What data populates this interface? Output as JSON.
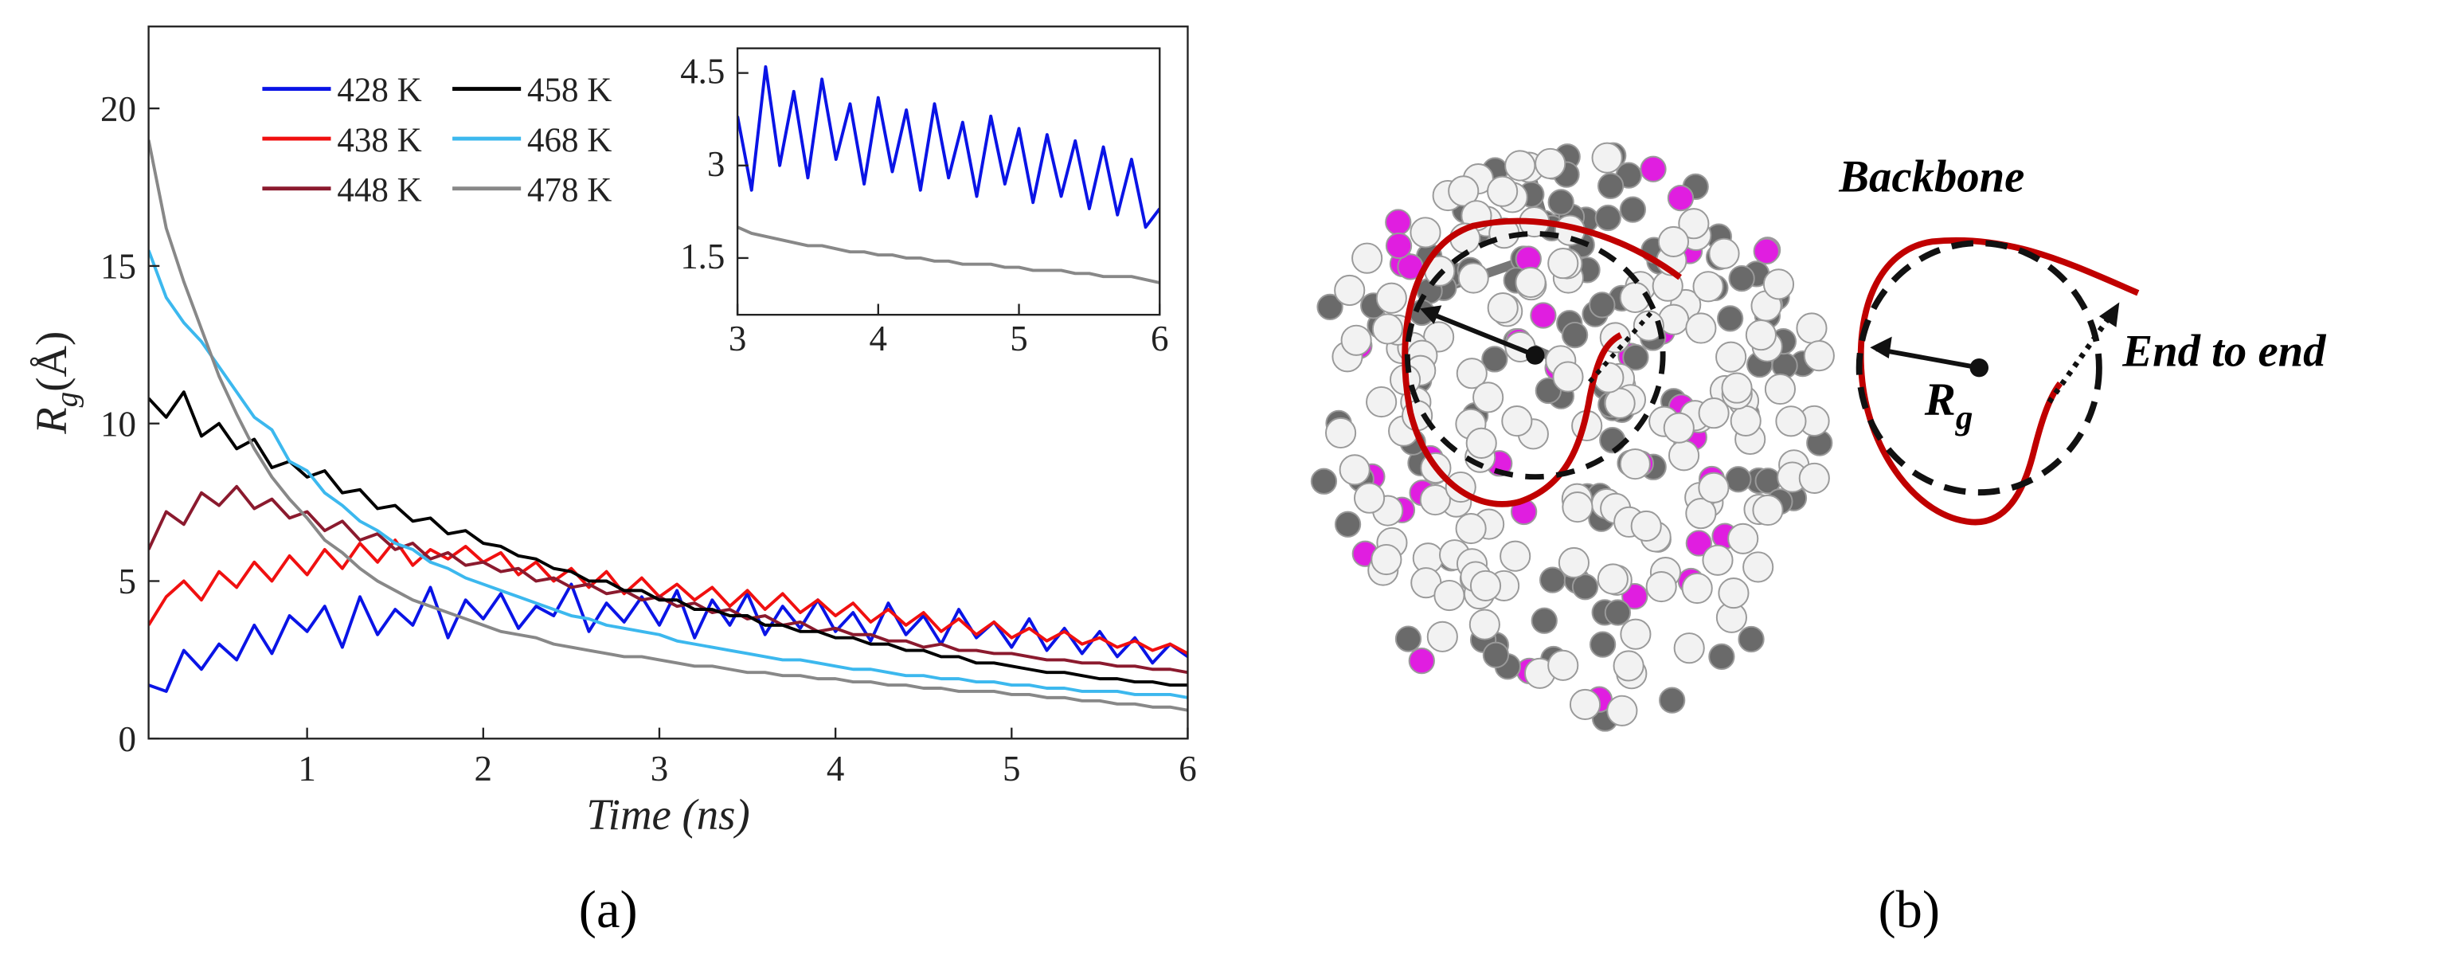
{
  "chart_data": [
    {
      "type": "line",
      "xlabel": "Time (ns)",
      "ylabel": [
        "R",
        "g",
        "(Å)"
      ],
      "x": [
        0.1,
        0.2,
        0.3,
        0.4,
        0.5,
        0.6,
        0.7,
        0.8,
        0.9,
        1.0,
        1.1,
        1.2,
        1.3,
        1.4,
        1.5,
        1.6,
        1.7,
        1.8,
        1.9,
        2.0,
        2.1,
        2.2,
        2.3,
        2.4,
        2.5,
        2.6,
        2.7,
        2.8,
        2.9,
        3.0,
        3.1,
        3.2,
        3.3,
        3.4,
        3.5,
        3.6,
        3.7,
        3.8,
        3.9,
        4.0,
        4.1,
        4.2,
        4.3,
        4.4,
        4.5,
        4.6,
        4.7,
        4.8,
        4.9,
        5.0,
        5.1,
        5.2,
        5.3,
        5.4,
        5.5,
        5.6,
        5.7,
        5.8,
        5.9,
        6.0
      ],
      "series": [
        {
          "name": "428 K",
          "color": "#0a14e6",
          "values": [
            1.7,
            1.5,
            2.8,
            2.2,
            3.0,
            2.5,
            3.6,
            2.7,
            3.9,
            3.4,
            4.2,
            2.9,
            4.5,
            3.3,
            4.1,
            3.6,
            4.8,
            3.2,
            4.4,
            3.8,
            4.6,
            3.5,
            4.2,
            3.9,
            4.9,
            3.4,
            4.3,
            3.7,
            4.5,
            3.6,
            4.7,
            3.2,
            4.4,
            3.6,
            4.6,
            3.3,
            4.2,
            3.5,
            4.4,
            3.4,
            4.0,
            3.1,
            4.3,
            3.3,
            3.9,
            3.0,
            4.1,
            3.2,
            3.7,
            2.9,
            3.8,
            2.8,
            3.5,
            2.7,
            3.4,
            2.6,
            3.2,
            2.4,
            3.0,
            2.6
          ]
        },
        {
          "name": "438 K",
          "color": "#f01010",
          "values": [
            3.6,
            4.5,
            5.0,
            4.4,
            5.3,
            4.8,
            5.6,
            5.0,
            5.8,
            5.2,
            6.0,
            5.4,
            6.2,
            5.6,
            6.3,
            5.5,
            6.0,
            5.7,
            6.1,
            5.6,
            5.9,
            5.2,
            5.6,
            5.0,
            5.4,
            4.8,
            5.3,
            4.6,
            5.1,
            4.5,
            4.9,
            4.4,
            4.8,
            4.2,
            4.7,
            4.1,
            4.6,
            4.0,
            4.4,
            3.9,
            4.3,
            3.7,
            4.1,
            3.6,
            4.0,
            3.4,
            3.8,
            3.3,
            3.7,
            3.2,
            3.5,
            3.1,
            3.4,
            3.0,
            3.2,
            2.9,
            3.1,
            2.8,
            3.0,
            2.7
          ]
        },
        {
          "name": "448 K",
          "color": "#8b1a2e",
          "values": [
            6.0,
            7.2,
            6.8,
            7.8,
            7.4,
            8.0,
            7.3,
            7.6,
            7.0,
            7.2,
            6.6,
            6.9,
            6.3,
            6.5,
            6.0,
            6.2,
            5.7,
            5.9,
            5.5,
            5.6,
            5.3,
            5.4,
            5.0,
            5.1,
            4.8,
            4.9,
            4.6,
            4.7,
            4.4,
            4.5,
            4.2,
            4.3,
            4.0,
            4.1,
            3.8,
            3.9,
            3.6,
            3.7,
            3.4,
            3.5,
            3.3,
            3.3,
            3.1,
            3.1,
            2.9,
            3.0,
            2.8,
            2.8,
            2.7,
            2.7,
            2.6,
            2.5,
            2.5,
            2.4,
            2.4,
            2.3,
            2.3,
            2.2,
            2.2,
            2.1
          ]
        },
        {
          "name": "458 K",
          "color": "#000000",
          "values": [
            10.8,
            10.2,
            11.0,
            9.6,
            10.0,
            9.2,
            9.5,
            8.6,
            8.8,
            8.3,
            8.5,
            7.8,
            7.9,
            7.3,
            7.4,
            6.9,
            7.0,
            6.5,
            6.6,
            6.2,
            6.1,
            5.8,
            5.7,
            5.4,
            5.3,
            5.0,
            5.0,
            4.7,
            4.7,
            4.4,
            4.4,
            4.1,
            4.1,
            3.9,
            3.9,
            3.6,
            3.6,
            3.4,
            3.4,
            3.2,
            3.2,
            3.0,
            3.0,
            2.8,
            2.8,
            2.6,
            2.6,
            2.4,
            2.4,
            2.3,
            2.2,
            2.1,
            2.1,
            2.0,
            1.9,
            1.9,
            1.8,
            1.8,
            1.7,
            1.7
          ]
        },
        {
          "name": "468 K",
          "color": "#3cb8ee",
          "values": [
            15.5,
            14.0,
            13.2,
            12.6,
            11.8,
            11.0,
            10.2,
            9.8,
            8.8,
            8.5,
            7.8,
            7.4,
            6.9,
            6.6,
            6.2,
            6.0,
            5.6,
            5.4,
            5.1,
            4.9,
            4.7,
            4.5,
            4.3,
            4.1,
            3.9,
            3.8,
            3.6,
            3.5,
            3.4,
            3.3,
            3.1,
            3.0,
            2.9,
            2.8,
            2.7,
            2.6,
            2.5,
            2.5,
            2.4,
            2.3,
            2.2,
            2.2,
            2.1,
            2.0,
            2.0,
            1.9,
            1.9,
            1.8,
            1.8,
            1.7,
            1.7,
            1.6,
            1.6,
            1.5,
            1.5,
            1.5,
            1.4,
            1.4,
            1.4,
            1.3
          ]
        },
        {
          "name": "478 K",
          "color": "#888888",
          "values": [
            19.0,
            16.2,
            14.5,
            13.0,
            11.5,
            10.3,
            9.2,
            8.3,
            7.6,
            7.0,
            6.3,
            5.9,
            5.4,
            5.0,
            4.7,
            4.4,
            4.2,
            4.0,
            3.8,
            3.6,
            3.4,
            3.3,
            3.2,
            3.0,
            2.9,
            2.8,
            2.7,
            2.6,
            2.6,
            2.5,
            2.4,
            2.3,
            2.3,
            2.2,
            2.1,
            2.1,
            2.0,
            2.0,
            1.9,
            1.9,
            1.8,
            1.8,
            1.7,
            1.7,
            1.6,
            1.6,
            1.5,
            1.5,
            1.5,
            1.4,
            1.4,
            1.3,
            1.3,
            1.2,
            1.2,
            1.1,
            1.1,
            1.0,
            1.0,
            0.9
          ]
        }
      ],
      "xlim": [
        0.1,
        6
      ],
      "ylim": [
        0,
        22.6
      ],
      "xticks": [
        1,
        2,
        3,
        4,
        5,
        6
      ],
      "yticks": [
        0,
        5,
        10,
        15,
        20
      ]
    },
    {
      "type": "line",
      "x": [
        3.0,
        3.1,
        3.2,
        3.3,
        3.4,
        3.5,
        3.6,
        3.7,
        3.8,
        3.9,
        4.0,
        4.1,
        4.2,
        4.3,
        4.4,
        4.5,
        4.6,
        4.7,
        4.8,
        4.9,
        5.0,
        5.1,
        5.2,
        5.3,
        5.4,
        5.5,
        5.6,
        5.7,
        5.8,
        5.9,
        6.0
      ],
      "series": [
        {
          "color": "#0a14e6",
          "values": [
            3.8,
            2.6,
            4.6,
            3.0,
            4.2,
            2.8,
            4.4,
            3.1,
            4.0,
            2.7,
            4.1,
            2.9,
            3.9,
            2.6,
            4.0,
            2.8,
            3.7,
            2.5,
            3.8,
            2.7,
            3.6,
            2.4,
            3.5,
            2.5,
            3.4,
            2.3,
            3.3,
            2.2,
            3.1,
            2.0,
            2.3
          ]
        },
        {
          "color": "#888888",
          "values": [
            2.0,
            1.9,
            1.85,
            1.8,
            1.75,
            1.7,
            1.7,
            1.65,
            1.6,
            1.6,
            1.55,
            1.55,
            1.5,
            1.5,
            1.45,
            1.45,
            1.4,
            1.4,
            1.4,
            1.35,
            1.35,
            1.3,
            1.3,
            1.3,
            1.25,
            1.25,
            1.2,
            1.2,
            1.2,
            1.15,
            1.1
          ]
        }
      ],
      "xlim": [
        3,
        6
      ],
      "ylim": [
        0.58,
        4.9
      ],
      "xticks": [
        3,
        4,
        5,
        6
      ],
      "yticks": [
        1.5,
        3,
        4.5
      ]
    }
  ],
  "panels": {
    "a": "(a)",
    "b": "(b)"
  },
  "diagram": {
    "backbone": "Backbone",
    "end_to_end": "End to end",
    "rg_symbol": "R",
    "rg_subscript": "g"
  }
}
